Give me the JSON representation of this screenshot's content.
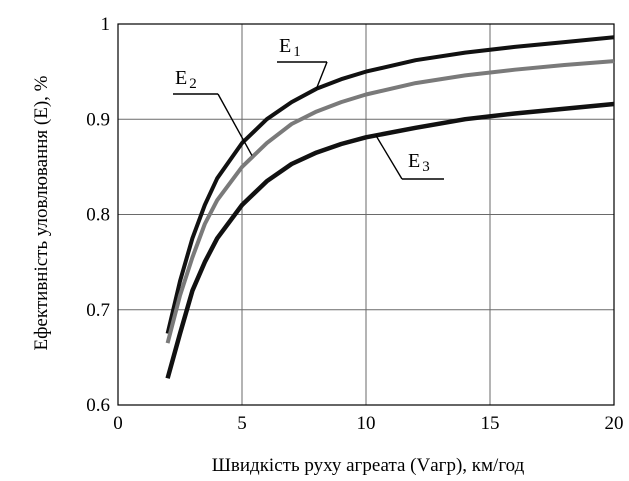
{
  "chart_data": {
    "type": "line",
    "title": "",
    "xlabel": "Швидкість руху агреата (Vагр), км/год",
    "ylabel": "Ефективність уловлювання (E), %",
    "xlim": [
      0,
      20
    ],
    "ylim": [
      0.6,
      1.0
    ],
    "x_ticks": [
      "0",
      "5",
      "10",
      "15",
      "20"
    ],
    "y_ticks": [
      "0.6",
      "0.7",
      "0.8",
      "0.9",
      "1"
    ],
    "grid": true,
    "colors": {
      "E1": "#111111",
      "E2": "#7a7a7a",
      "E3": "#111111"
    },
    "series": [
      {
        "name": "E1",
        "label_main": "E",
        "label_sub": "1",
        "x": [
          2,
          2.5,
          3,
          3.5,
          4,
          5,
          6,
          7,
          8,
          9,
          10,
          12,
          14,
          16,
          18,
          20
        ],
        "values": [
          0.675,
          0.73,
          0.775,
          0.81,
          0.838,
          0.875,
          0.9,
          0.918,
          0.932,
          0.942,
          0.95,
          0.962,
          0.97,
          0.976,
          0.981,
          0.986
        ]
      },
      {
        "name": "E2",
        "label_main": "E",
        "label_sub": "2",
        "x": [
          2,
          2.5,
          3,
          3.5,
          4,
          5,
          6,
          7,
          8,
          9,
          10,
          12,
          14,
          16,
          18,
          20
        ],
        "values": [
          0.665,
          0.715,
          0.755,
          0.79,
          0.815,
          0.85,
          0.875,
          0.895,
          0.908,
          0.918,
          0.926,
          0.938,
          0.946,
          0.952,
          0.957,
          0.961
        ]
      },
      {
        "name": "E3",
        "label_main": "E",
        "label_sub": "3",
        "x": [
          2,
          2.5,
          3,
          3.5,
          4,
          5,
          6,
          7,
          8,
          9,
          10,
          12,
          14,
          16,
          18,
          20
        ],
        "values": [
          0.628,
          0.675,
          0.72,
          0.75,
          0.775,
          0.81,
          0.835,
          0.853,
          0.865,
          0.874,
          0.881,
          0.891,
          0.9,
          0.906,
          0.911,
          0.916
        ]
      }
    ]
  }
}
